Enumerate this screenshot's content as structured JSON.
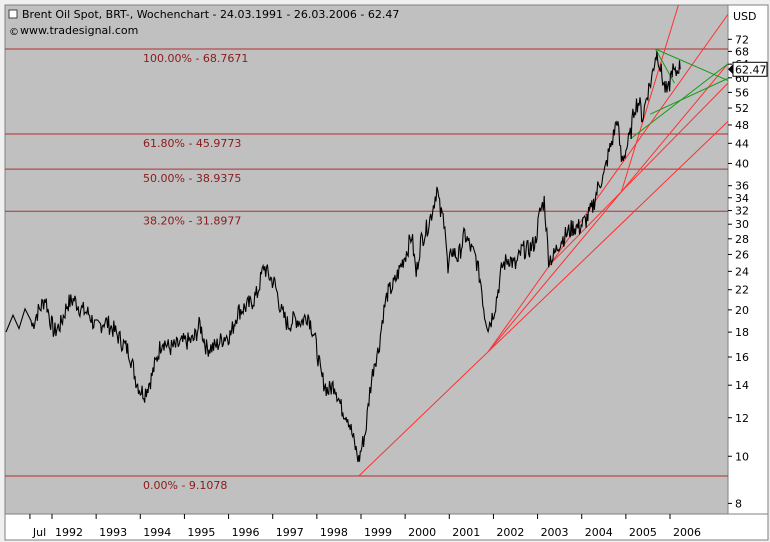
{
  "header": {
    "title": "Brent Oil Spot, BRT-, Wochenchart - 24.03.1991 - 26.03.2006 - 62.47",
    "source": "www.tradesignal.com"
  },
  "colors": {
    "plot_bg": "#c0c0c0",
    "price_line": "#000000",
    "fib_line": "#b03030",
    "fib_text": "#8b1a1a",
    "trend_line": "#ff3030",
    "channel_line": "#1a9a1a",
    "axis_text": "#000000",
    "last_price_box": "#ffffff"
  },
  "chart_data": {
    "type": "line",
    "title": "Brent Oil Spot, BRT-, Wochenchart - 24.03.1991 - 26.03.2006 - 62.47",
    "ylabel": "USD",
    "y_scale": "log",
    "ylim": [
      7.5,
      80
    ],
    "x_ticks": [
      "Jul",
      "1992",
      "1993",
      "1994",
      "1995",
      "1996",
      "1997",
      "1998",
      "1999",
      "2000",
      "2001",
      "2002",
      "2003",
      "2004",
      "2005",
      "2006"
    ],
    "y_ticks": [
      8,
      10,
      12,
      14,
      16,
      18,
      20,
      22,
      24,
      26,
      28,
      30,
      32,
      34,
      36,
      40,
      44,
      48,
      52,
      56,
      60,
      64,
      68,
      72
    ],
    "last_value": "62.47",
    "fibonacci_levels": [
      {
        "label": "100.00% - 68.7671",
        "value": 68.7671
      },
      {
        "label": "61.80% - 45.9773",
        "value": 45.9773
      },
      {
        "label": "50.00% - 38.9375",
        "value": 38.9375
      },
      {
        "label": "38.20% - 31.8977",
        "value": 31.8977
      },
      {
        "label": "0.00% - 9.1078",
        "value": 9.1078
      }
    ],
    "series": [
      {
        "values": [
          [
            1991.55,
            18.5
          ],
          [
            1991.65,
            19.6
          ],
          [
            1991.75,
            20.3
          ],
          [
            1991.85,
            21.2
          ],
          [
            1991.95,
            19.2
          ],
          [
            1992.05,
            18.0
          ],
          [
            1992.2,
            18.7
          ],
          [
            1992.35,
            20.6
          ],
          [
            1992.5,
            21.0
          ],
          [
            1992.65,
            20.1
          ],
          [
            1992.85,
            19.6
          ],
          [
            1993.0,
            18.3
          ],
          [
            1993.2,
            19.0
          ],
          [
            1993.4,
            18.2
          ],
          [
            1993.6,
            17.1
          ],
          [
            1993.75,
            16.4
          ],
          [
            1993.9,
            14.4
          ],
          [
            1994.0,
            13.7
          ],
          [
            1994.1,
            13.5
          ],
          [
            1994.25,
            14.5
          ],
          [
            1994.4,
            16.2
          ],
          [
            1994.5,
            17.4
          ],
          [
            1994.65,
            16.7
          ],
          [
            1994.8,
            16.8
          ],
          [
            1995.0,
            17.2
          ],
          [
            1995.2,
            17.3
          ],
          [
            1995.35,
            18.7
          ],
          [
            1995.5,
            16.7
          ],
          [
            1995.7,
            16.8
          ],
          [
            1995.9,
            17.6
          ],
          [
            1996.05,
            17.8
          ],
          [
            1996.2,
            19.8
          ],
          [
            1996.35,
            20.2
          ],
          [
            1996.5,
            20.6
          ],
          [
            1996.65,
            21.6
          ],
          [
            1996.8,
            24.6
          ],
          [
            1996.9,
            23.6
          ],
          [
            1997.05,
            22.6
          ],
          [
            1997.2,
            19.8
          ],
          [
            1997.35,
            18.6
          ],
          [
            1997.5,
            19.2
          ],
          [
            1997.65,
            18.9
          ],
          [
            1997.8,
            19.6
          ],
          [
            1997.95,
            17.6
          ],
          [
            1998.1,
            14.6
          ],
          [
            1998.25,
            13.6
          ],
          [
            1998.4,
            14.1
          ],
          [
            1998.55,
            12.6
          ],
          [
            1998.7,
            12.1
          ],
          [
            1998.85,
            10.6
          ],
          [
            1998.95,
            9.8
          ],
          [
            1999.0,
            10.3
          ],
          [
            1999.1,
            11.2
          ],
          [
            1999.2,
            13.6
          ],
          [
            1999.3,
            15.6
          ],
          [
            1999.4,
            16.6
          ],
          [
            1999.5,
            19.6
          ],
          [
            1999.6,
            21.6
          ],
          [
            1999.75,
            22.6
          ],
          [
            1999.9,
            24.6
          ],
          [
            2000.05,
            26.6
          ],
          [
            2000.15,
            28.6
          ],
          [
            2000.25,
            23.6
          ],
          [
            2000.35,
            27.6
          ],
          [
            2000.5,
            29.6
          ],
          [
            2000.6,
            31.6
          ],
          [
            2000.72,
            35.6
          ],
          [
            2000.8,
            31.6
          ],
          [
            2000.9,
            30.6
          ],
          [
            2000.97,
            23.6
          ],
          [
            2001.05,
            26.6
          ],
          [
            2001.2,
            25.6
          ],
          [
            2001.35,
            28.6
          ],
          [
            2001.5,
            26.6
          ],
          [
            2001.6,
            25.6
          ],
          [
            2001.72,
            22.6
          ],
          [
            2001.8,
            19.6
          ],
          [
            2001.88,
            18.6
          ],
          [
            2001.95,
            19.1
          ],
          [
            2002.05,
            20.6
          ],
          [
            2002.2,
            24.6
          ],
          [
            2002.35,
            25.6
          ],
          [
            2002.5,
            24.6
          ],
          [
            2002.65,
            26.6
          ],
          [
            2002.8,
            26.6
          ],
          [
            2002.95,
            27.6
          ],
          [
            2003.05,
            31.6
          ],
          [
            2003.15,
            33.6
          ],
          [
            2003.25,
            25.6
          ],
          [
            2003.35,
            25.6
          ],
          [
            2003.5,
            27.6
          ],
          [
            2003.65,
            28.6
          ],
          [
            2003.8,
            29.6
          ],
          [
            2003.95,
            29.6
          ],
          [
            2004.1,
            30.6
          ],
          [
            2004.25,
            32.6
          ],
          [
            2004.4,
            36.6
          ],
          [
            2004.5,
            37.6
          ],
          [
            2004.6,
            41.6
          ],
          [
            2004.72,
            45.6
          ],
          [
            2004.8,
            49.6
          ],
          [
            2004.9,
            40.6
          ],
          [
            2005.0,
            42.6
          ],
          [
            2005.1,
            45.6
          ],
          [
            2005.2,
            52.6
          ],
          [
            2005.3,
            53.6
          ],
          [
            2005.38,
            49.6
          ],
          [
            2005.48,
            55.6
          ],
          [
            2005.58,
            59.6
          ],
          [
            2005.67,
            66.6
          ],
          [
            2005.72,
            67.6
          ],
          [
            2005.8,
            61.6
          ],
          [
            2005.87,
            57.6
          ],
          [
            2005.95,
            55.6
          ],
          [
            2006.05,
            62.6
          ],
          [
            2006.12,
            60.6
          ],
          [
            2006.2,
            63.6
          ],
          [
            2006.23,
            62.47
          ]
        ]
      }
    ]
  }
}
